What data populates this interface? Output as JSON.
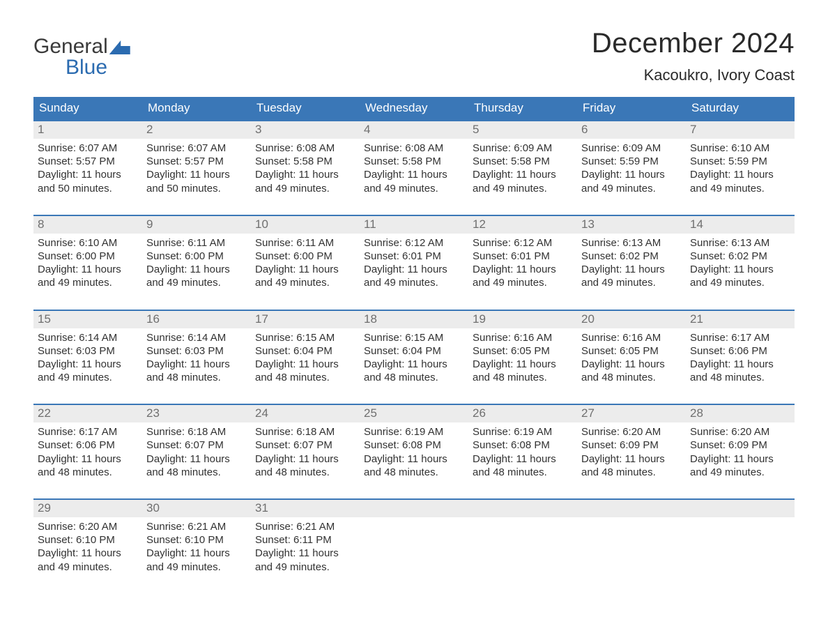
{
  "logo": {
    "text1": "General",
    "text2": "Blue"
  },
  "title": "December 2024",
  "location": "Kacoukro, Ivory Coast",
  "colors": {
    "header_bg": "#3a77b7",
    "header_text": "#ffffff",
    "daynum_bg": "#ececec",
    "daynum_text": "#6f6f6f",
    "body_text": "#323232",
    "rule": "#3a77b7",
    "logo_blue": "#2b6bb0",
    "logo_dark": "#3a3a3a",
    "page_bg": "#ffffff"
  },
  "typography": {
    "title_fontsize": 40,
    "location_fontsize": 22,
    "header_fontsize": 17,
    "daynum_fontsize": 17,
    "cell_fontsize": 15,
    "logo_fontsize": 30
  },
  "day_names": [
    "Sunday",
    "Monday",
    "Tuesday",
    "Wednesday",
    "Thursday",
    "Friday",
    "Saturday"
  ],
  "weeks": [
    [
      {
        "n": "1",
        "l1": "Sunrise: 6:07 AM",
        "l2": "Sunset: 5:57 PM",
        "l3": "Daylight: 11 hours",
        "l4": "and 50 minutes."
      },
      {
        "n": "2",
        "l1": "Sunrise: 6:07 AM",
        "l2": "Sunset: 5:57 PM",
        "l3": "Daylight: 11 hours",
        "l4": "and 50 minutes."
      },
      {
        "n": "3",
        "l1": "Sunrise: 6:08 AM",
        "l2": "Sunset: 5:58 PM",
        "l3": "Daylight: 11 hours",
        "l4": "and 49 minutes."
      },
      {
        "n": "4",
        "l1": "Sunrise: 6:08 AM",
        "l2": "Sunset: 5:58 PM",
        "l3": "Daylight: 11 hours",
        "l4": "and 49 minutes."
      },
      {
        "n": "5",
        "l1": "Sunrise: 6:09 AM",
        "l2": "Sunset: 5:58 PM",
        "l3": "Daylight: 11 hours",
        "l4": "and 49 minutes."
      },
      {
        "n": "6",
        "l1": "Sunrise: 6:09 AM",
        "l2": "Sunset: 5:59 PM",
        "l3": "Daylight: 11 hours",
        "l4": "and 49 minutes."
      },
      {
        "n": "7",
        "l1": "Sunrise: 6:10 AM",
        "l2": "Sunset: 5:59 PM",
        "l3": "Daylight: 11 hours",
        "l4": "and 49 minutes."
      }
    ],
    [
      {
        "n": "8",
        "l1": "Sunrise: 6:10 AM",
        "l2": "Sunset: 6:00 PM",
        "l3": "Daylight: 11 hours",
        "l4": "and 49 minutes."
      },
      {
        "n": "9",
        "l1": "Sunrise: 6:11 AM",
        "l2": "Sunset: 6:00 PM",
        "l3": "Daylight: 11 hours",
        "l4": "and 49 minutes."
      },
      {
        "n": "10",
        "l1": "Sunrise: 6:11 AM",
        "l2": "Sunset: 6:00 PM",
        "l3": "Daylight: 11 hours",
        "l4": "and 49 minutes."
      },
      {
        "n": "11",
        "l1": "Sunrise: 6:12 AM",
        "l2": "Sunset: 6:01 PM",
        "l3": "Daylight: 11 hours",
        "l4": "and 49 minutes."
      },
      {
        "n": "12",
        "l1": "Sunrise: 6:12 AM",
        "l2": "Sunset: 6:01 PM",
        "l3": "Daylight: 11 hours",
        "l4": "and 49 minutes."
      },
      {
        "n": "13",
        "l1": "Sunrise: 6:13 AM",
        "l2": "Sunset: 6:02 PM",
        "l3": "Daylight: 11 hours",
        "l4": "and 49 minutes."
      },
      {
        "n": "14",
        "l1": "Sunrise: 6:13 AM",
        "l2": "Sunset: 6:02 PM",
        "l3": "Daylight: 11 hours",
        "l4": "and 49 minutes."
      }
    ],
    [
      {
        "n": "15",
        "l1": "Sunrise: 6:14 AM",
        "l2": "Sunset: 6:03 PM",
        "l3": "Daylight: 11 hours",
        "l4": "and 49 minutes."
      },
      {
        "n": "16",
        "l1": "Sunrise: 6:14 AM",
        "l2": "Sunset: 6:03 PM",
        "l3": "Daylight: 11 hours",
        "l4": "and 48 minutes."
      },
      {
        "n": "17",
        "l1": "Sunrise: 6:15 AM",
        "l2": "Sunset: 6:04 PM",
        "l3": "Daylight: 11 hours",
        "l4": "and 48 minutes."
      },
      {
        "n": "18",
        "l1": "Sunrise: 6:15 AM",
        "l2": "Sunset: 6:04 PM",
        "l3": "Daylight: 11 hours",
        "l4": "and 48 minutes."
      },
      {
        "n": "19",
        "l1": "Sunrise: 6:16 AM",
        "l2": "Sunset: 6:05 PM",
        "l3": "Daylight: 11 hours",
        "l4": "and 48 minutes."
      },
      {
        "n": "20",
        "l1": "Sunrise: 6:16 AM",
        "l2": "Sunset: 6:05 PM",
        "l3": "Daylight: 11 hours",
        "l4": "and 48 minutes."
      },
      {
        "n": "21",
        "l1": "Sunrise: 6:17 AM",
        "l2": "Sunset: 6:06 PM",
        "l3": "Daylight: 11 hours",
        "l4": "and 48 minutes."
      }
    ],
    [
      {
        "n": "22",
        "l1": "Sunrise: 6:17 AM",
        "l2": "Sunset: 6:06 PM",
        "l3": "Daylight: 11 hours",
        "l4": "and 48 minutes."
      },
      {
        "n": "23",
        "l1": "Sunrise: 6:18 AM",
        "l2": "Sunset: 6:07 PM",
        "l3": "Daylight: 11 hours",
        "l4": "and 48 minutes."
      },
      {
        "n": "24",
        "l1": "Sunrise: 6:18 AM",
        "l2": "Sunset: 6:07 PM",
        "l3": "Daylight: 11 hours",
        "l4": "and 48 minutes."
      },
      {
        "n": "25",
        "l1": "Sunrise: 6:19 AM",
        "l2": "Sunset: 6:08 PM",
        "l3": "Daylight: 11 hours",
        "l4": "and 48 minutes."
      },
      {
        "n": "26",
        "l1": "Sunrise: 6:19 AM",
        "l2": "Sunset: 6:08 PM",
        "l3": "Daylight: 11 hours",
        "l4": "and 48 minutes."
      },
      {
        "n": "27",
        "l1": "Sunrise: 6:20 AM",
        "l2": "Sunset: 6:09 PM",
        "l3": "Daylight: 11 hours",
        "l4": "and 48 minutes."
      },
      {
        "n": "28",
        "l1": "Sunrise: 6:20 AM",
        "l2": "Sunset: 6:09 PM",
        "l3": "Daylight: 11 hours",
        "l4": "and 49 minutes."
      }
    ],
    [
      {
        "n": "29",
        "l1": "Sunrise: 6:20 AM",
        "l2": "Sunset: 6:10 PM",
        "l3": "Daylight: 11 hours",
        "l4": "and 49 minutes."
      },
      {
        "n": "30",
        "l1": "Sunrise: 6:21 AM",
        "l2": "Sunset: 6:10 PM",
        "l3": "Daylight: 11 hours",
        "l4": "and 49 minutes."
      },
      {
        "n": "31",
        "l1": "Sunrise: 6:21 AM",
        "l2": "Sunset: 6:11 PM",
        "l3": "Daylight: 11 hours",
        "l4": "and 49 minutes."
      },
      null,
      null,
      null,
      null
    ]
  ]
}
